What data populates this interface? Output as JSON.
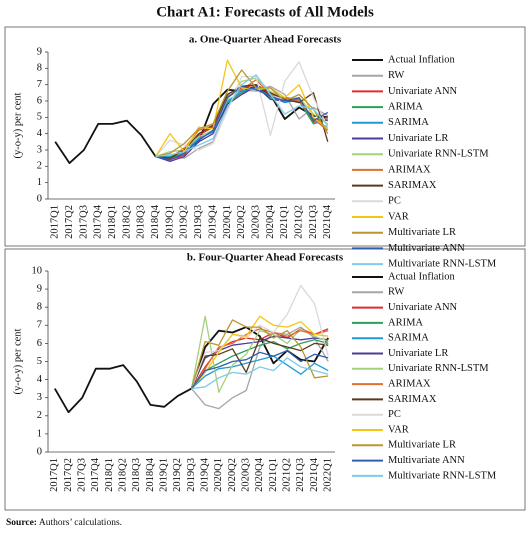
{
  "title": "Chart A1: Forecasts of All Models",
  "source_label": "Source:",
  "source_text": "Authors’ calculations.",
  "chart_data": [
    {
      "type": "line",
      "title": "a. One-Quarter Ahead Forecasts",
      "y_label": "(y-o-y) per cent",
      "categories": [
        "2017Q1",
        "2017Q2",
        "2017Q3",
        "2017Q4",
        "2018Q1",
        "2018Q2",
        "2018Q3",
        "2018Q4",
        "2019Q1",
        "2019Q2",
        "2019Q3",
        "2019Q4",
        "2020Q1",
        "2020Q2",
        "2020Q3",
        "2020Q4",
        "2021Q1",
        "2021Q2",
        "2021Q3",
        "2021Q4"
      ],
      "ylim": [
        0,
        9
      ],
      "yticks": [
        0,
        1,
        2,
        3,
        4,
        5,
        6,
        7,
        8,
        9
      ],
      "legend": "right",
      "series": [
        {
          "name": "Actual Inflation",
          "color": "#111111",
          "values": [
            3.5,
            2.2,
            3.0,
            4.6,
            4.6,
            4.8,
            3.9,
            2.6,
            2.5,
            3.1,
            3.5,
            5.8,
            6.7,
            6.6,
            6.9,
            6.4,
            4.9,
            5.6,
            5.1,
            5.0
          ]
        },
        {
          "name": "RW",
          "color": "#a6a6a6",
          "values": [
            null,
            null,
            null,
            null,
            null,
            null,
            null,
            2.6,
            2.6,
            2.5,
            3.1,
            3.5,
            5.8,
            6.7,
            6.6,
            6.9,
            6.4,
            4.9,
            5.6,
            5.1
          ]
        },
        {
          "name": "Univariate ANN",
          "color": "#e02b2b",
          "values": [
            null,
            null,
            null,
            null,
            null,
            null,
            null,
            2.6,
            2.4,
            2.7,
            3.9,
            4.4,
            6.2,
            6.8,
            7.0,
            6.4,
            6.2,
            6.1,
            4.7,
            5.0
          ]
        },
        {
          "name": "ARIMA",
          "color": "#2ca05a",
          "values": [
            null,
            null,
            null,
            null,
            null,
            null,
            null,
            2.6,
            2.5,
            2.8,
            3.6,
            4.2,
            5.9,
            6.5,
            6.9,
            6.2,
            6.0,
            6.0,
            4.6,
            4.9
          ]
        },
        {
          "name": "SARIMA",
          "color": "#1f9bd7",
          "values": [
            null,
            null,
            null,
            null,
            null,
            null,
            null,
            2.6,
            2.6,
            2.9,
            3.7,
            4.1,
            6.0,
            6.6,
            6.8,
            6.3,
            5.9,
            6.1,
            4.8,
            4.4
          ]
        },
        {
          "name": "Univariate LR",
          "color": "#4b3c9b",
          "values": [
            null,
            null,
            null,
            null,
            null,
            null,
            null,
            2.6,
            2.3,
            2.6,
            3.5,
            4.0,
            5.8,
            6.4,
            6.9,
            6.1,
            6.0,
            6.0,
            4.9,
            4.8
          ]
        },
        {
          "name": "Univariate RNN-LSTM",
          "color": "#a6cf7e",
          "values": [
            null,
            null,
            null,
            null,
            null,
            null,
            null,
            2.6,
            2.9,
            3.0,
            3.8,
            4.2,
            6.1,
            7.2,
            7.4,
            6.6,
            6.1,
            6.2,
            5.2,
            4.6
          ]
        },
        {
          "name": "ARIMAX",
          "color": "#e07030",
          "values": [
            null,
            null,
            null,
            null,
            null,
            null,
            null,
            2.6,
            2.5,
            3.1,
            4.2,
            4.5,
            6.3,
            6.7,
            7.3,
            6.4,
            6.2,
            6.0,
            4.9,
            4.2
          ]
        },
        {
          "name": "SARIMAX",
          "color": "#5a3a1a",
          "values": [
            null,
            null,
            null,
            null,
            null,
            null,
            null,
            2.6,
            2.5,
            3.0,
            4.0,
            4.5,
            6.4,
            6.9,
            7.0,
            6.5,
            6.1,
            5.9,
            6.5,
            3.5
          ]
        },
        {
          "name": "PC",
          "color": "#d9d9d9",
          "values": [
            null,
            null,
            null,
            null,
            null,
            null,
            null,
            2.6,
            3.6,
            3.3,
            3.0,
            3.4,
            5.4,
            7.5,
            7.5,
            3.9,
            7.2,
            8.4,
            6.2,
            4.4
          ]
        },
        {
          "name": "VAR",
          "color": "#f5c518",
          "values": [
            null,
            null,
            null,
            null,
            null,
            null,
            null,
            2.6,
            4.0,
            2.9,
            4.4,
            4.3,
            8.5,
            6.8,
            6.7,
            6.8,
            6.2,
            7.0,
            5.0,
            4.3
          ]
        },
        {
          "name": "Multivariate LR",
          "color": "#b8962e",
          "values": [
            null,
            null,
            null,
            null,
            null,
            null,
            null,
            2.6,
            2.8,
            3.4,
            4.3,
            4.6,
            6.6,
            7.9,
            6.8,
            6.8,
            6.0,
            6.4,
            5.5,
            4.0
          ]
        },
        {
          "name": "Multivariate ANN",
          "color": "#2e5fb0",
          "values": [
            null,
            null,
            null,
            null,
            null,
            null,
            null,
            2.6,
            2.4,
            2.8,
            3.6,
            4.2,
            6.2,
            6.9,
            6.7,
            6.3,
            6.0,
            6.2,
            4.8,
            5.3
          ]
        },
        {
          "name": "Multivariate RNN-LSTM",
          "color": "#7ecbea",
          "values": [
            null,
            null,
            null,
            null,
            null,
            null,
            null,
            2.6,
            2.7,
            2.9,
            3.3,
            3.7,
            5.6,
            7.0,
            7.6,
            6.4,
            5.2,
            5.7,
            5.5,
            4.5
          ]
        }
      ]
    },
    {
      "type": "line",
      "title": "b. Four-Quarter Ahead Forecasts",
      "y_label": "(y-o-y) per cent",
      "categories": [
        "2017Q1",
        "2017Q2",
        "2017Q3",
        "2017Q4",
        "2018Q1",
        "2018Q2",
        "2018Q3",
        "2018Q4",
        "2019Q1",
        "2019Q2",
        "2019Q3",
        "2019Q4",
        "2020Q1",
        "2020Q2",
        "2020Q3",
        "2020Q4",
        "2021Q1",
        "2021Q2",
        "2021Q3",
        "2021Q4",
        "2022Q1"
      ],
      "ylim": [
        0,
        10
      ],
      "yticks": [
        0,
        1,
        2,
        3,
        4,
        5,
        6,
        7,
        8,
        9,
        10
      ],
      "legend": "right",
      "series": [
        {
          "name": "Actual Inflation",
          "color": "#111111",
          "values": [
            3.5,
            2.2,
            3.0,
            4.6,
            4.6,
            4.8,
            3.9,
            2.6,
            2.5,
            3.1,
            3.5,
            5.8,
            6.7,
            6.6,
            6.9,
            6.4,
            4.9,
            5.6,
            5.1,
            5.0,
            6.3
          ]
        },
        {
          "name": "RW",
          "color": "#a6a6a6",
          "values": [
            null,
            null,
            null,
            null,
            null,
            null,
            null,
            null,
            null,
            null,
            3.5,
            2.6,
            2.4,
            3.0,
            3.4,
            5.8,
            6.6,
            6.5,
            6.9,
            6.3,
            5.0
          ]
        },
        {
          "name": "Univariate ANN",
          "color": "#e02b2b",
          "values": [
            null,
            null,
            null,
            null,
            null,
            null,
            null,
            null,
            null,
            null,
            3.5,
            4.7,
            5.7,
            6.1,
            6.3,
            6.2,
            6.6,
            6.3,
            6.8,
            6.5,
            6.8
          ]
        },
        {
          "name": "ARIMA",
          "color": "#2ca05a",
          "values": [
            null,
            null,
            null,
            null,
            null,
            null,
            null,
            null,
            null,
            null,
            3.5,
            4.5,
            4.9,
            5.3,
            5.6,
            5.9,
            6.1,
            5.7,
            6.0,
            6.2,
            6.0
          ]
        },
        {
          "name": "SARIMA",
          "color": "#1f9bd7",
          "values": [
            null,
            null,
            null,
            null,
            null,
            null,
            null,
            null,
            null,
            null,
            3.5,
            4.2,
            4.6,
            4.7,
            4.9,
            5.1,
            5.3,
            4.8,
            4.3,
            4.9,
            4.5
          ]
        },
        {
          "name": "Univariate LR",
          "color": "#4b3c9b",
          "values": [
            null,
            null,
            null,
            null,
            null,
            null,
            null,
            null,
            null,
            null,
            3.5,
            5.2,
            5.6,
            5.9,
            6.0,
            6.1,
            6.4,
            6.3,
            6.2,
            6.3,
            6.2
          ]
        },
        {
          "name": "Univariate RNN-LSTM",
          "color": "#a6cf7e",
          "values": [
            null,
            null,
            null,
            null,
            null,
            null,
            null,
            null,
            null,
            null,
            3.5,
            7.5,
            3.3,
            4.8,
            5.4,
            6.7,
            6.5,
            6.0,
            6.8,
            6.4,
            6.1
          ]
        },
        {
          "name": "ARIMAX",
          "color": "#e07030",
          "values": [
            null,
            null,
            null,
            null,
            null,
            null,
            null,
            null,
            null,
            null,
            3.5,
            4.6,
            5.8,
            6.0,
            6.5,
            6.8,
            6.6,
            6.4,
            6.7,
            6.5,
            6.7
          ]
        },
        {
          "name": "SARIMAX",
          "color": "#5a3a1a",
          "values": [
            null,
            null,
            null,
            null,
            null,
            null,
            null,
            null,
            null,
            null,
            3.5,
            5.3,
            5.4,
            5.7,
            4.4,
            6.3,
            6.0,
            5.8,
            5.6,
            6.0,
            5.9
          ]
        },
        {
          "name": "PC",
          "color": "#d9d9d9",
          "values": [
            null,
            null,
            null,
            null,
            null,
            null,
            null,
            null,
            null,
            null,
            3.5,
            5.5,
            5.6,
            6.5,
            6.3,
            7.0,
            6.6,
            7.6,
            9.2,
            8.2,
            5.3
          ]
        },
        {
          "name": "VAR",
          "color": "#f5c518",
          "values": [
            null,
            null,
            null,
            null,
            null,
            null,
            null,
            null,
            null,
            null,
            3.5,
            4.4,
            5.5,
            6.5,
            6.4,
            7.5,
            7.0,
            6.9,
            7.2,
            6.5,
            6.4
          ]
        },
        {
          "name": "Multivariate LR",
          "color": "#b8962e",
          "values": [
            null,
            null,
            null,
            null,
            null,
            null,
            null,
            null,
            null,
            null,
            3.5,
            6.1,
            5.9,
            7.3,
            6.9,
            6.9,
            6.3,
            6.7,
            5.8,
            4.1,
            4.2
          ]
        },
        {
          "name": "Multivariate ANN",
          "color": "#2e5fb0",
          "values": [
            null,
            null,
            null,
            null,
            null,
            null,
            null,
            null,
            null,
            null,
            3.5,
            4.5,
            4.7,
            5.0,
            5.1,
            5.5,
            5.3,
            5.6,
            5.0,
            5.4,
            5.2
          ]
        },
        {
          "name": "Multivariate RNN-LSTM",
          "color": "#7ecbea",
          "values": [
            null,
            null,
            null,
            null,
            null,
            null,
            null,
            null,
            null,
            null,
            3.5,
            3.6,
            4.1,
            4.4,
            4.3,
            4.7,
            4.5,
            5.2,
            4.7,
            4.5,
            4.3
          ]
        }
      ]
    }
  ]
}
